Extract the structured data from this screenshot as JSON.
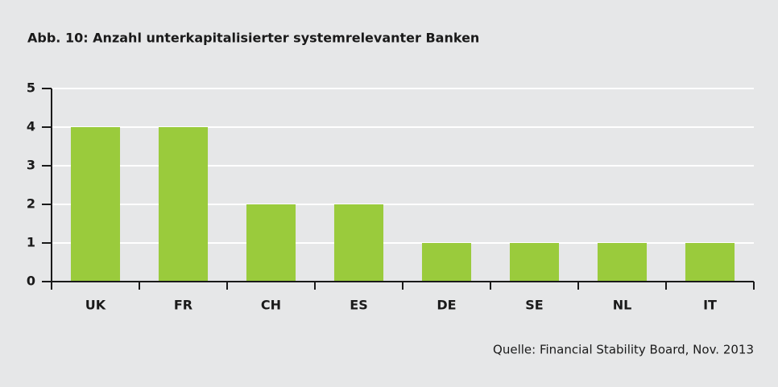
{
  "chart_data": {
    "type": "bar",
    "title": "Abb. 10: Anzahl unterkapitalisierter systemrelevanter Banken",
    "categories": [
      "UK",
      "FR",
      "CH",
      "ES",
      "DE",
      "SE",
      "NL",
      "IT"
    ],
    "values": [
      4,
      4,
      2,
      2,
      1,
      1,
      1,
      1
    ],
    "color": "#9acb3c",
    "ylim": [
      0,
      5
    ],
    "yticks": [
      0,
      1,
      2,
      3,
      4,
      5
    ],
    "grid": true,
    "source": "Quelle: Financial Stability Board, Nov. 2013"
  }
}
